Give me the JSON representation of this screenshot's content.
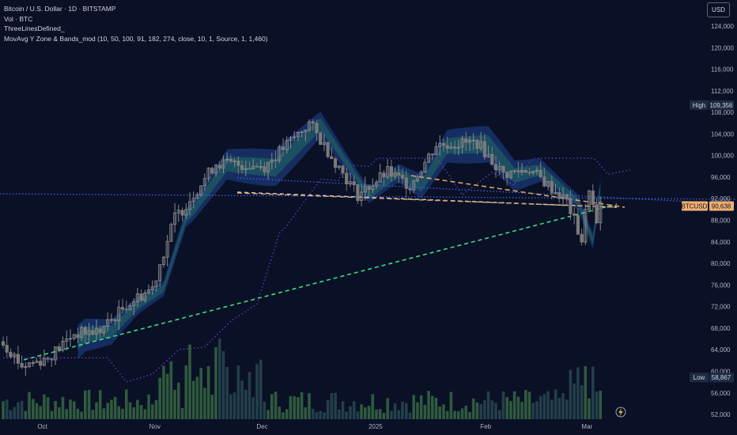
{
  "legend": {
    "title": "Bitcoin / U.S. Dollar · 1D · BITSTAMP",
    "volume": "Vol · BTC",
    "indicator1": "ThreeLinesDefined_",
    "indicator2": "MovAvg Y Zone & Bands_mod (10, 50, 100, 91, 182, 274, close, 10, 1, Source, 1, 1,460)"
  },
  "currency_button": "USD",
  "colors": {
    "background": "#0a1026",
    "bull": "#8c8c8c",
    "bear": "#7a7a7a",
    "band_fill": "#17336b",
    "band_inner": "#1f5e63",
    "vol_bull": "#2f5a3e",
    "vol_bear": "#233f4a",
    "ma_dotted": "#5f3fb5",
    "blue_dotted": "#3d63e0",
    "green_dashed": "#3bdc8a",
    "orange_dashed": "#e0a366",
    "white_dashed": "#d8d8d8",
    "price_tag": "#f0b070",
    "high_low_tag": "#1f2a44"
  },
  "flash_icon": "lightning-icon",
  "chart_data": {
    "type": "candlestick",
    "y_ticks": [
      "124,000",
      "120,000",
      "116,000",
      "112,000",
      "108,000",
      "104,000",
      "100,000",
      "96,000",
      "92,000",
      "88,000",
      "84,000",
      "80,000",
      "76,000",
      "72,000",
      "68,000",
      "64,000",
      "60,000",
      "56,000",
      "52,000"
    ],
    "x_ticks": [
      "Oct",
      "Nov",
      "Dec",
      "2025",
      "Feb",
      "Mar"
    ],
    "ylim": [
      50000,
      126000
    ],
    "high_label": "High",
    "high_value": "109,356",
    "low_label": "Low",
    "low_value": "58,867",
    "last_symbol": "BTCUSD",
    "last_value": "90,638",
    "series": [
      {
        "name": "BTCUSD close (approx)",
        "points": [
          [
            "Sep 26",
            65500
          ],
          [
            "Oct 1",
            61000
          ],
          [
            "Oct 8",
            62500
          ],
          [
            "Oct 15",
            67000
          ],
          [
            "Oct 22",
            67500
          ],
          [
            "Oct 29",
            72300
          ],
          [
            "Nov 5",
            75500
          ],
          [
            "Nov 11",
            88600
          ],
          [
            "Nov 13",
            90000
          ],
          [
            "Nov 22",
            98600
          ],
          [
            "Dec 5",
            98000
          ],
          [
            "Dec 17",
            106000
          ],
          [
            "Dec 30",
            92700
          ],
          [
            "Jan 7",
            96900
          ],
          [
            "Jan 13",
            94500
          ],
          [
            "Jan 20",
            102000
          ],
          [
            "Jan 31",
            102400
          ],
          [
            "Feb 7",
            96500
          ],
          [
            "Feb 14",
            97500
          ],
          [
            "Feb 24",
            91500
          ],
          [
            "Feb 28",
            84300
          ],
          [
            "Mar 2",
            94200
          ],
          [
            "Mar 4",
            87000
          ],
          [
            "Mar 5",
            90638
          ]
        ]
      }
    ]
  }
}
